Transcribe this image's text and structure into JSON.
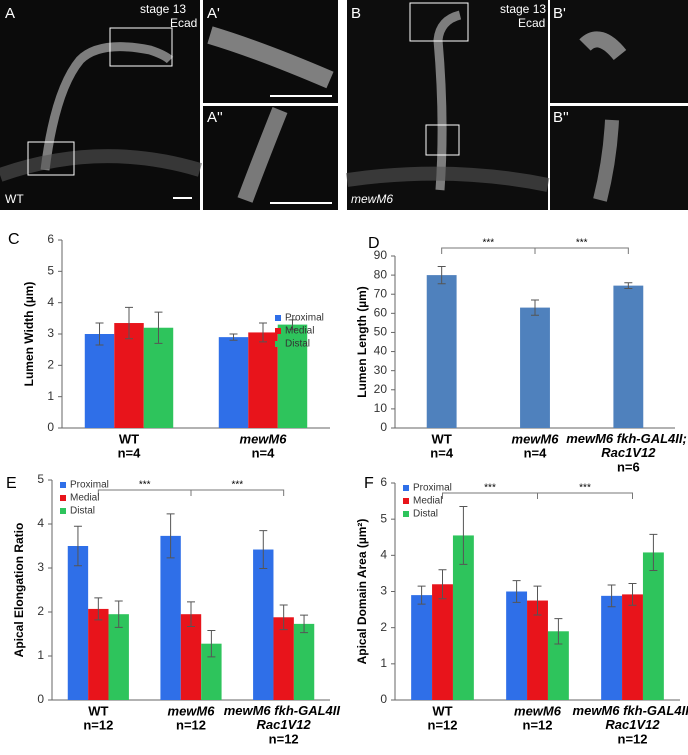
{
  "images": {
    "A": "A",
    "A1": "A'",
    "A2": "A''",
    "A_stage": "stage 13",
    "A_stain": "Ecad",
    "A_genotype": "WT",
    "B": "B",
    "B1": "B'",
    "B2": "B''",
    "B_stage": "stage 13",
    "B_stain": "Ecad",
    "B_genotype": "mewM6"
  },
  "chart_data": [
    {
      "type": "bar",
      "panel": "C",
      "ylabel": "Lumen Width (µm)",
      "categories": [
        "WT",
        "mewM6"
      ],
      "n_labels": [
        "n=4",
        "n=4"
      ],
      "series": [
        {
          "name": "Proximal",
          "color": "#2f6fe8",
          "values": [
            3.0,
            2.9
          ],
          "errors": [
            0.35,
            0.1
          ]
        },
        {
          "name": "Medial",
          "color": "#e8141b",
          "values": [
            3.35,
            3.05
          ],
          "errors": [
            0.5,
            0.3
          ]
        },
        {
          "name": "Distal",
          "color": "#2ec45c",
          "values": [
            3.2,
            3.3
          ],
          "errors": [
            0.5,
            0.15
          ]
        }
      ],
      "ylim": [
        0,
        6
      ],
      "yticks": [
        0,
        1,
        2,
        3,
        4,
        5,
        6
      ],
      "legend": "right"
    },
    {
      "type": "bar",
      "panel": "D",
      "ylabel": "Lumen Length (µm)",
      "categories": [
        "WT",
        "mewM6",
        "mewM6 fkh-GAL4II; Rac1V12"
      ],
      "n_labels": [
        "n=4",
        "n=4",
        "n=6"
      ],
      "series": [
        {
          "color": "#4f81bd",
          "values": [
            80,
            63,
            74.5
          ],
          "errors": [
            4.5,
            4,
            1.5
          ]
        }
      ],
      "ylim": [
        0,
        90
      ],
      "yticks": [
        0,
        10,
        20,
        30,
        40,
        50,
        60,
        70,
        80,
        90
      ],
      "annotations": [
        "***",
        "***"
      ]
    },
    {
      "type": "bar",
      "panel": "E",
      "ylabel": "Apical  Elongation Ratio",
      "categories": [
        "WT",
        "mewM6",
        "mewM6 fkh-GAL4II Rac1V12"
      ],
      "n_labels": [
        "n=12",
        "n=12",
        "n=12"
      ],
      "series": [
        {
          "name": "Proximal",
          "color": "#2f6fe8",
          "values": [
            3.5,
            3.73,
            3.42
          ],
          "errors": [
            0.45,
            0.5,
            0.43
          ]
        },
        {
          "name": "Medial",
          "color": "#e8141b",
          "values": [
            2.07,
            1.95,
            1.88
          ],
          "errors": [
            0.25,
            0.28,
            0.28
          ]
        },
        {
          "name": "Distal",
          "color": "#2ec45c",
          "values": [
            1.95,
            1.28,
            1.73
          ],
          "errors": [
            0.3,
            0.3,
            0.2
          ]
        }
      ],
      "ylim": [
        0,
        5
      ],
      "yticks": [
        0,
        1,
        2,
        3,
        4,
        5
      ],
      "legend": "upper left",
      "annotations": [
        "***",
        "***"
      ]
    },
    {
      "type": "bar",
      "panel": "F",
      "ylabel": "Apical Domain Area (µm²)",
      "categories": [
        "WT",
        "mewM6",
        "mewM6 fkh-GAL4II Rac1V12"
      ],
      "n_labels": [
        "n=12",
        "n=12",
        "n=12"
      ],
      "series": [
        {
          "name": "Proximal",
          "color": "#2f6fe8",
          "values": [
            2.9,
            3.0,
            2.88
          ],
          "errors": [
            0.25,
            0.3,
            0.3
          ]
        },
        {
          "name": "Medial",
          "color": "#e8141b",
          "values": [
            3.2,
            2.75,
            2.92
          ],
          "errors": [
            0.4,
            0.4,
            0.3
          ]
        },
        {
          "name": "Distal",
          "color": "#2ec45c",
          "values": [
            4.55,
            1.9,
            4.08
          ],
          "errors": [
            0.8,
            0.35,
            0.5
          ]
        }
      ],
      "ylim": [
        0,
        6
      ],
      "yticks": [
        0,
        1,
        2,
        3,
        4,
        5,
        6
      ],
      "legend": "upper left",
      "annotations": [
        "***",
        "***"
      ]
    }
  ]
}
